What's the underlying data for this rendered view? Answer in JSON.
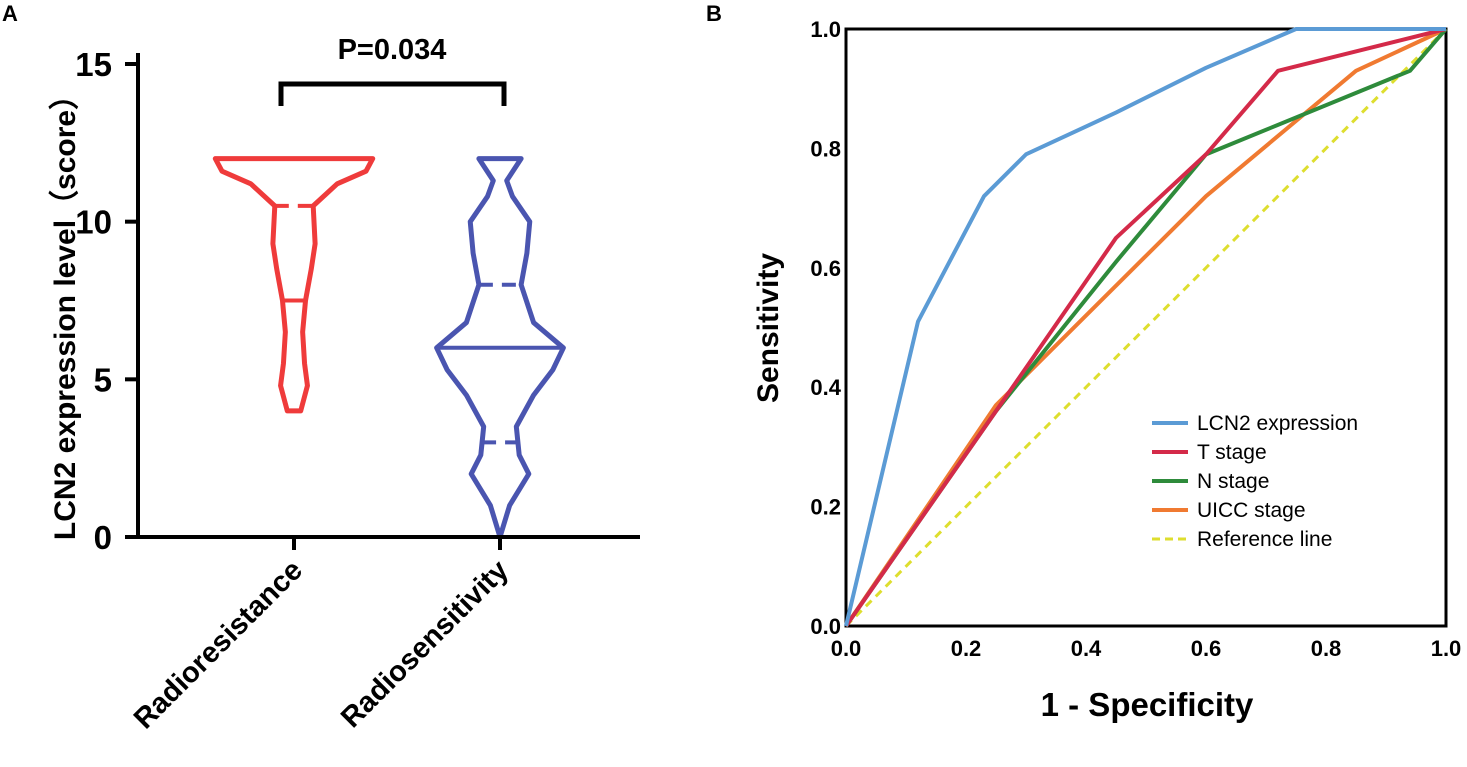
{
  "chart_data": [
    {
      "panel": "A",
      "type": "violin",
      "title": "",
      "ylabel": "LCN2 expression level（score）",
      "ylim": [
        0,
        15
      ],
      "yticks": [
        "0",
        "5",
        "10",
        "15"
      ],
      "categories": [
        "Radioresistance",
        "Radiosensitivity"
      ],
      "significance": "P=0.034",
      "series": [
        {
          "name": "Radioresistance",
          "color": "#ef3b3b",
          "range": [
            4,
            12
          ],
          "median": 7.5,
          "q1": 7.5,
          "q3": 10.5,
          "profile": [
            [
              4,
              0.07
            ],
            [
              4.8,
              0.14
            ],
            [
              5.5,
              0.11
            ],
            [
              6.5,
              0.09
            ],
            [
              7.5,
              0.12
            ],
            [
              8.5,
              0.18
            ],
            [
              9.3,
              0.22
            ],
            [
              10.5,
              0.2
            ],
            [
              11.2,
              0.45
            ],
            [
              11.6,
              0.75
            ],
            [
              12,
              0.82
            ]
          ]
        },
        {
          "name": "Radiosensitivity",
          "color": "#4a55b0",
          "range": [
            0,
            12
          ],
          "median": 6,
          "q1": 3,
          "q3": 8,
          "profile": [
            [
              0,
              0
            ],
            [
              1,
              0.1
            ],
            [
              2,
              0.3
            ],
            [
              2.6,
              0.2
            ],
            [
              3.5,
              0.17
            ],
            [
              4.5,
              0.35
            ],
            [
              5.3,
              0.55
            ],
            [
              6,
              0.66
            ],
            [
              6.8,
              0.35
            ],
            [
              8,
              0.22
            ],
            [
              9,
              0.28
            ],
            [
              10,
              0.31
            ],
            [
              10.8,
              0.13
            ],
            [
              11.3,
              0.07
            ],
            [
              12,
              0.22
            ]
          ]
        }
      ]
    },
    {
      "panel": "B",
      "type": "line",
      "title": "",
      "xlabel": "1 - Specificity",
      "ylabel": "Sensitivity",
      "xlim": [
        0,
        1
      ],
      "ylim": [
        0,
        1
      ],
      "xticks": [
        "0.0",
        "0.2",
        "0.4",
        "0.6",
        "0.8",
        "1.0"
      ],
      "yticks": [
        "0.0",
        "0.2",
        "0.4",
        "0.6",
        "0.8",
        "1.0"
      ],
      "legend_position": "bottom-right",
      "series": [
        {
          "name": "LCN2 expression",
          "color": "#5b9bd5",
          "dashed": false,
          "x": [
            0,
            0.12,
            0.23,
            0.3,
            0.45,
            0.6,
            0.75,
            1.0
          ],
          "y": [
            0,
            0.51,
            0.72,
            0.79,
            0.86,
            0.935,
            1.0,
            1.0
          ]
        },
        {
          "name": "T stage",
          "color": "#d42a49",
          "dashed": false,
          "x": [
            0,
            0.25,
            0.45,
            0.6,
            0.72,
            1.0
          ],
          "y": [
            0,
            0.36,
            0.65,
            0.79,
            0.93,
            1.0
          ]
        },
        {
          "name": "N stage",
          "color": "#2e8b3b",
          "dashed": false,
          "x": [
            0,
            0.25,
            0.45,
            0.6,
            0.94,
            1.0
          ],
          "y": [
            0,
            0.36,
            0.61,
            0.79,
            0.93,
            1.0
          ]
        },
        {
          "name": "UICC stage",
          "color": "#f07a31",
          "dashed": false,
          "x": [
            0,
            0.25,
            0.6,
            0.85,
            1.0
          ],
          "y": [
            0,
            0.37,
            0.72,
            0.93,
            1.0
          ]
        },
        {
          "name": "Reference line",
          "color": "#dede2e",
          "dashed": true,
          "x": [
            0,
            1.0
          ],
          "y": [
            0,
            1.0
          ]
        }
      ]
    }
  ]
}
